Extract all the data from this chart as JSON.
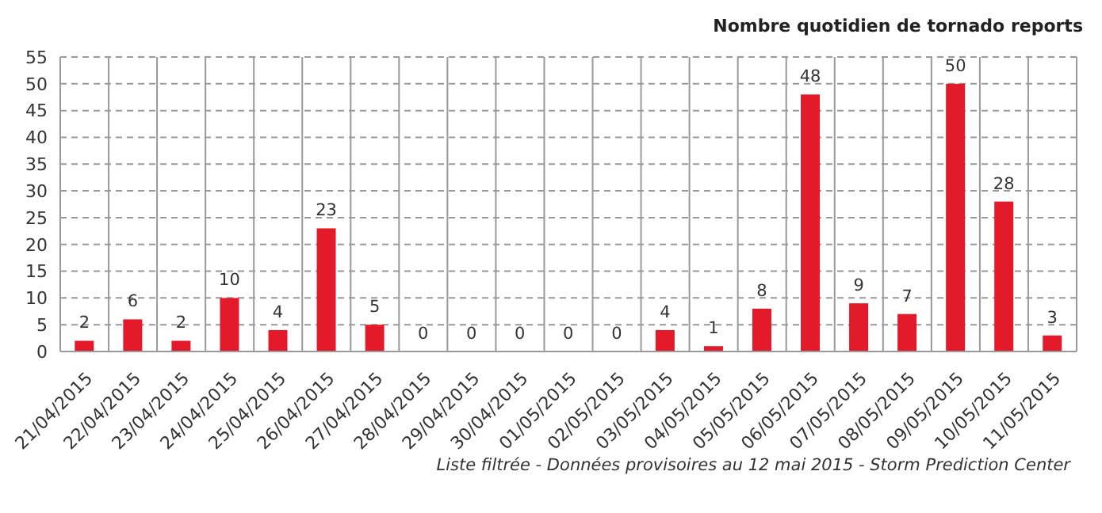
{
  "chart_data": {
    "type": "bar",
    "title": "Nombre quotidien de tornado reports",
    "categories": [
      "21/04/2015",
      "22/04/2015",
      "23/04/2015",
      "24/04/2015",
      "25/04/2015",
      "26/04/2015",
      "27/04/2015",
      "28/04/2015",
      "29/04/2015",
      "30/04/2015",
      "01/05/2015",
      "02/05/2015",
      "03/05/2015",
      "04/05/2015",
      "05/05/2015",
      "06/05/2015",
      "07/05/2015",
      "08/05/2015",
      "09/05/2015",
      "10/05/2015",
      "11/05/2015"
    ],
    "values": [
      2,
      6,
      2,
      10,
      4,
      23,
      5,
      0,
      0,
      0,
      0,
      0,
      4,
      1,
      8,
      48,
      9,
      7,
      50,
      28,
      3
    ],
    "color": "#e31a2a",
    "ylim": [
      0,
      55
    ],
    "yticks": [
      0,
      5,
      10,
      15,
      20,
      25,
      30,
      35,
      40,
      45,
      50,
      55
    ],
    "grid": true,
    "data_labels": true,
    "annotations": [
      "Liste filtrée - Données provisoires au 12 mai 2015 - Storm Prediction Center"
    ]
  }
}
